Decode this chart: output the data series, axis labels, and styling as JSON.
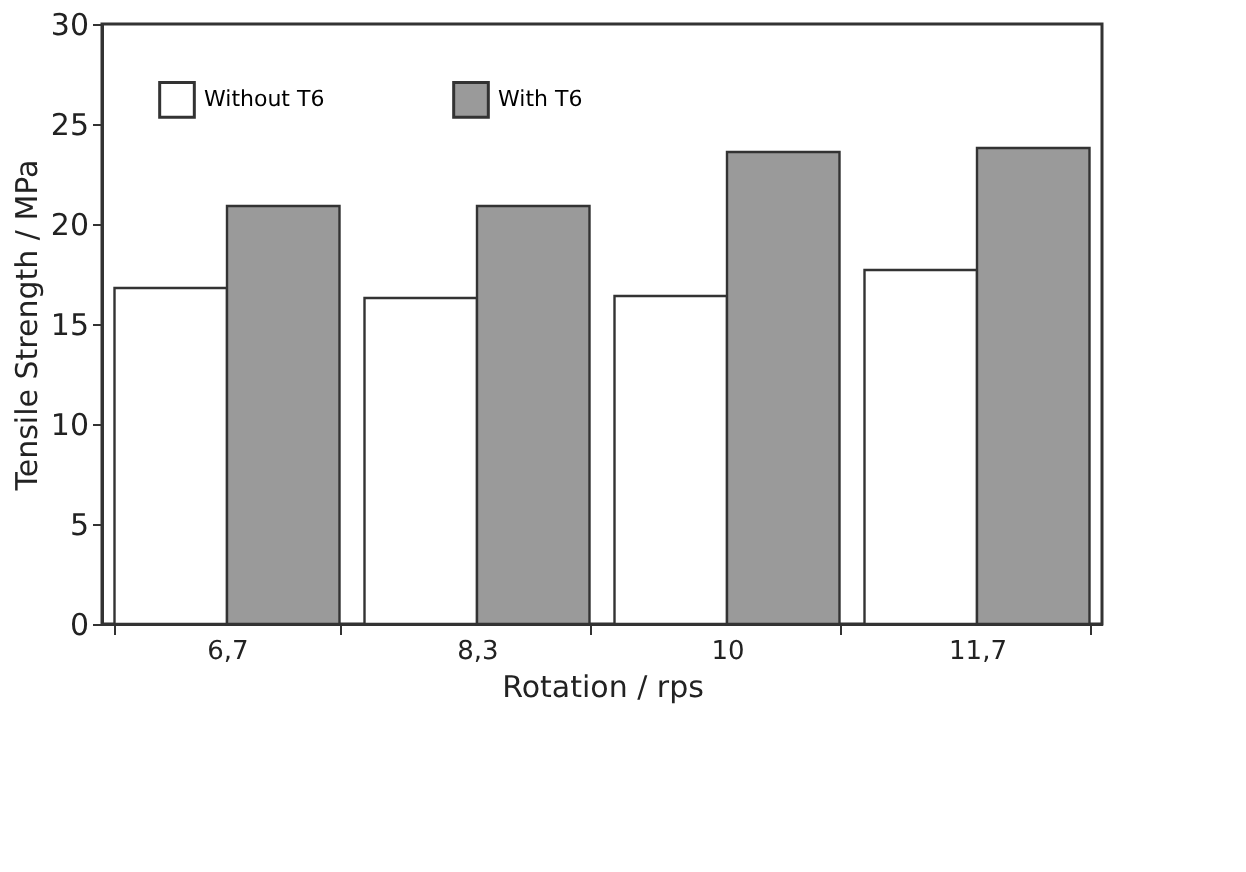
{
  "chart_data": {
    "type": "bar",
    "xlabel": "Rotation / rps",
    "ylabel": "Tensile Strength / MPa",
    "categories": [
      "6,7",
      "8,3",
      "10",
      "11,7"
    ],
    "series": [
      {
        "name": "Without T6",
        "color": "#ffffff",
        "values": [
          16.8,
          16.3,
          16.4,
          17.7
        ]
      },
      {
        "name": "With T6",
        "color": "#9a9a9a",
        "values": [
          20.9,
          20.9,
          23.6,
          23.8
        ]
      }
    ],
    "ylim": [
      0,
      30
    ],
    "yticks": [
      0,
      5,
      10,
      15,
      20,
      25,
      30
    ],
    "grid": false,
    "legend": "top left"
  }
}
